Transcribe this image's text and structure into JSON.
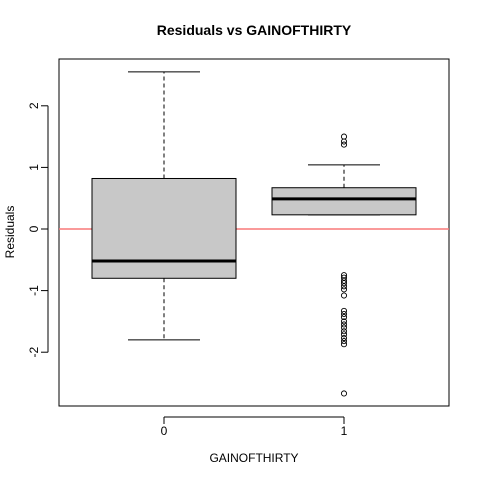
{
  "chart_data": {
    "type": "boxplot",
    "title": "Residuals vs GAINOFTHIRTY",
    "xlabel": "GAINOFTHIRTY",
    "ylabel": "Residuals",
    "categories": [
      "0",
      "1"
    ],
    "ylim": [
      -2.9,
      2.8
    ],
    "yticks": [
      -2,
      -1,
      0,
      1,
      2
    ],
    "yticklabels": [
      "-2",
      "-1",
      "0",
      "1",
      "2"
    ],
    "reference_line": {
      "y": 0,
      "color": "#f87878"
    },
    "box_fill": "#c8c8c8",
    "boxes": [
      {
        "category": "0",
        "whisker_low": -1.8,
        "q1": -0.8,
        "median": -0.52,
        "q3": 0.82,
        "whisker_high": 2.55,
        "outliers": []
      },
      {
        "category": "1",
        "whisker_low": 0.23,
        "q1": 0.23,
        "median": 0.49,
        "q3": 0.67,
        "whisker_high": 1.04,
        "outliers": [
          1.5,
          1.42,
          1.37,
          -0.75,
          -0.79,
          -0.84,
          -0.88,
          -0.93,
          -0.98,
          -1.08,
          -1.33,
          -1.38,
          -1.43,
          -1.5,
          -1.55,
          -1.6,
          -1.66,
          -1.71,
          -1.77,
          -1.82,
          -1.87,
          -2.67
        ]
      }
    ],
    "grid": false,
    "legend": "none"
  }
}
